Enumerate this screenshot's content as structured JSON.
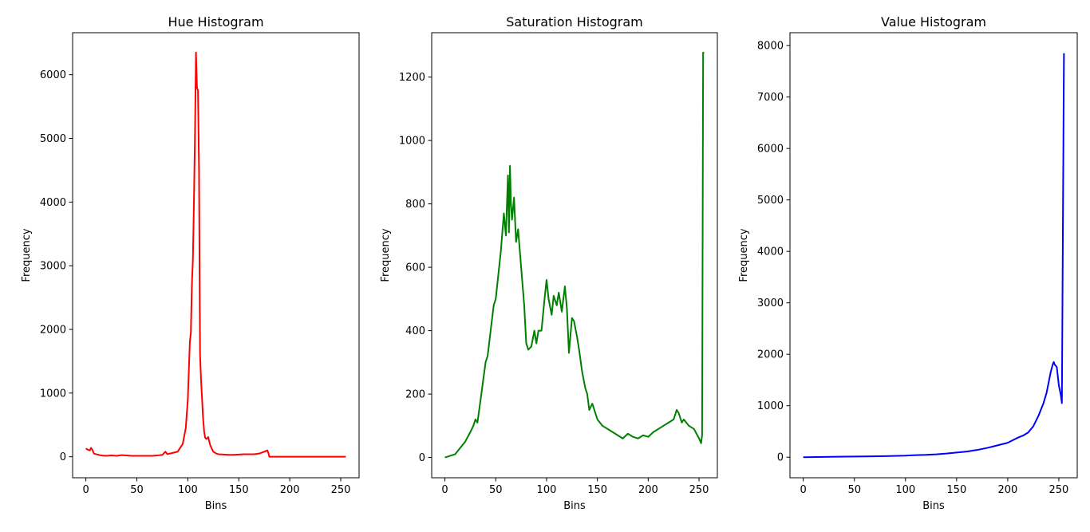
{
  "chart_data": [
    {
      "type": "line",
      "title": "Hue Histogram",
      "xlabel": "Bins",
      "ylabel": "Frequency",
      "xlim": [
        -13,
        268
      ],
      "ylim": [
        -330,
        6660
      ],
      "xticks": [
        0,
        50,
        100,
        150,
        200,
        250
      ],
      "yticks": [
        0,
        1000,
        2000,
        3000,
        4000,
        5000,
        6000
      ],
      "series": [
        {
          "color": "#ff0000",
          "x": [
            0,
            2,
            4,
            5,
            6,
            8,
            10,
            15,
            20,
            25,
            30,
            35,
            40,
            45,
            50,
            55,
            60,
            65,
            70,
            75,
            78,
            80,
            85,
            90,
            95,
            98,
            100,
            102,
            103,
            104,
            105,
            106,
            107,
            108,
            109,
            110,
            111,
            112,
            113,
            114,
            115,
            116,
            117,
            118,
            119,
            120,
            122,
            125,
            128,
            130,
            135,
            140,
            145,
            150,
            155,
            160,
            165,
            170,
            175,
            178,
            179,
            180,
            185,
            190,
            200,
            210,
            220,
            230,
            240,
            250,
            255
          ],
          "values": [
            130,
            110,
            100,
            140,
            120,
            50,
            40,
            20,
            15,
            20,
            15,
            25,
            20,
            15,
            15,
            15,
            15,
            15,
            20,
            30,
            80,
            40,
            60,
            80,
            200,
            450,
            900,
            1800,
            1950,
            2700,
            3100,
            4000,
            5000,
            6350,
            5800,
            5750,
            4500,
            1600,
            1200,
            900,
            600,
            400,
            300,
            280,
            290,
            310,
            180,
            80,
            50,
            40,
            35,
            30,
            30,
            35,
            40,
            40,
            40,
            50,
            80,
            100,
            60,
            0,
            0,
            0,
            0,
            0,
            0,
            0,
            0,
            0,
            0
          ]
        }
      ]
    },
    {
      "type": "line",
      "title": "Saturation Histogram",
      "xlabel": "Bins",
      "ylabel": "Frequency",
      "xlim": [
        -13,
        268
      ],
      "ylim": [
        -64,
        1340
      ],
      "xticks": [
        0,
        50,
        100,
        150,
        200,
        250
      ],
      "yticks": [
        0,
        200,
        400,
        600,
        800,
        1000,
        1200
      ],
      "series": [
        {
          "color": "#008000",
          "x": [
            0,
            5,
            10,
            15,
            20,
            25,
            28,
            30,
            32,
            35,
            40,
            42,
            45,
            48,
            50,
            52,
            55,
            58,
            60,
            62,
            63,
            64,
            65,
            66,
            68,
            70,
            72,
            75,
            78,
            80,
            82,
            85,
            88,
            90,
            92,
            95,
            98,
            100,
            102,
            105,
            107,
            110,
            112,
            115,
            118,
            120,
            122,
            125,
            127,
            130,
            132,
            135,
            138,
            140,
            142,
            145,
            148,
            150,
            155,
            160,
            165,
            170,
            175,
            180,
            185,
            190,
            195,
            200,
            205,
            210,
            215,
            220,
            225,
            228,
            230,
            233,
            235,
            240,
            245,
            250,
            252,
            253,
            254,
            255
          ],
          "values": [
            0,
            5,
            10,
            30,
            50,
            80,
            100,
            120,
            110,
            180,
            300,
            320,
            400,
            480,
            500,
            560,
            650,
            770,
            700,
            890,
            710,
            920,
            800,
            750,
            820,
            680,
            720,
            600,
            480,
            360,
            340,
            350,
            400,
            360,
            400,
            400,
            500,
            560,
            500,
            450,
            510,
            480,
            520,
            460,
            540,
            470,
            330,
            440,
            430,
            380,
            340,
            270,
            220,
            200,
            150,
            170,
            140,
            120,
            100,
            90,
            80,
            70,
            60,
            75,
            65,
            60,
            70,
            65,
            80,
            90,
            100,
            110,
            120,
            150,
            140,
            110,
            120,
            100,
            90,
            60,
            45,
            70,
            1277,
            1277
          ]
        }
      ]
    },
    {
      "type": "line",
      "title": "Value Histogram",
      "xlabel": "Bins",
      "ylabel": "Frequency",
      "xlim": [
        -13,
        268
      ],
      "ylim": [
        -400,
        8250
      ],
      "xticks": [
        0,
        50,
        100,
        150,
        200,
        250
      ],
      "yticks": [
        0,
        1000,
        2000,
        3000,
        4000,
        5000,
        6000,
        7000,
        8000
      ],
      "series": [
        {
          "color": "#0000ff",
          "x": [
            0,
            20,
            40,
            60,
            80,
            100,
            110,
            120,
            130,
            140,
            150,
            160,
            170,
            180,
            190,
            200,
            205,
            210,
            215,
            220,
            225,
            230,
            235,
            238,
            240,
            242,
            244,
            245,
            246,
            248,
            250,
            252,
            253,
            254,
            255
          ],
          "values": [
            0,
            5,
            10,
            15,
            20,
            30,
            40,
            45,
            55,
            70,
            90,
            110,
            140,
            180,
            230,
            280,
            330,
            380,
            420,
            480,
            600,
            800,
            1050,
            1250,
            1450,
            1650,
            1800,
            1850,
            1800,
            1750,
            1400,
            1200,
            1050,
            4500,
            7850
          ]
        }
      ]
    }
  ]
}
